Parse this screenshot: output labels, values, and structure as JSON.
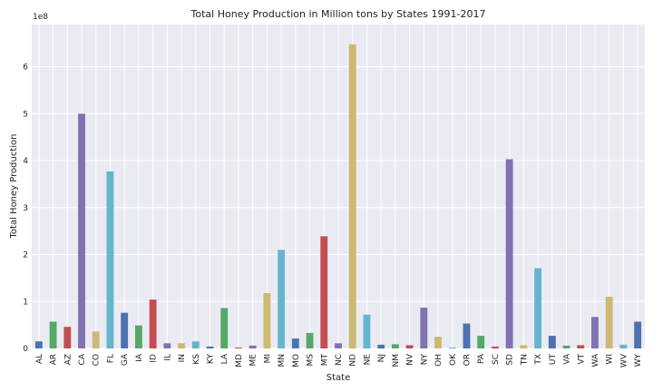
{
  "chart_data": {
    "type": "bar",
    "title": "Total Honey Production in Million tons by States 1991-2017",
    "xlabel": "State",
    "ylabel": "Total Honey Production",
    "scale_label": "1e8",
    "ylim": [
      0,
      6.9
    ],
    "yticks": [
      0,
      1,
      2,
      3,
      4,
      5,
      6
    ],
    "grid": true,
    "background": "#EAEAF2",
    "palette": [
      "#4C72B0",
      "#55A868",
      "#C44E52",
      "#8172B2",
      "#CCB974",
      "#64B5CD"
    ],
    "categories": [
      "AL",
      "AR",
      "AZ",
      "CA",
      "CO",
      "FL",
      "GA",
      "IA",
      "ID",
      "IL",
      "IN",
      "KS",
      "KY",
      "LA",
      "MD",
      "ME",
      "MI",
      "MN",
      "MO",
      "MS",
      "MT",
      "NC",
      "ND",
      "NE",
      "NJ",
      "NM",
      "NV",
      "NY",
      "OH",
      "OK",
      "OR",
      "PA",
      "SC",
      "SD",
      "TN",
      "TX",
      "UT",
      "VA",
      "VT",
      "WA",
      "WI",
      "WV",
      "WY"
    ],
    "values": [
      0.15,
      0.57,
      0.46,
      5.0,
      0.36,
      3.77,
      0.76,
      0.49,
      1.04,
      0.11,
      0.11,
      0.15,
      0.04,
      0.86,
      0.02,
      0.06,
      1.18,
      2.1,
      0.21,
      0.33,
      2.39,
      0.11,
      6.48,
      0.72,
      0.08,
      0.09,
      0.07,
      0.87,
      0.25,
      0.02,
      0.53,
      0.27,
      0.04,
      4.03,
      0.07,
      1.71,
      0.27,
      0.06,
      0.07,
      0.67,
      1.1,
      0.08,
      0.57
    ]
  }
}
